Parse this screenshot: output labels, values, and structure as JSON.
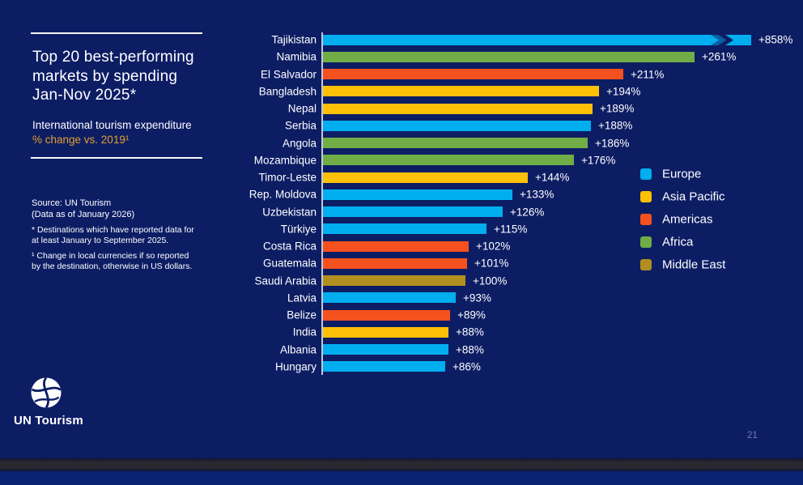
{
  "panel": {
    "title_lines": [
      "Top 20 best-performing",
      "markets by spending",
      "Jan-Nov 2025*"
    ],
    "subtitle": "International tourism expenditure",
    "subtitle_highlight": "% change vs. 2019¹",
    "highlight_color": "#E0A030",
    "source_lines": [
      "Source: UN Tourism",
      "(Data as of January 2026)"
    ],
    "footnote1_lines": [
      "* Destinations which have reported data for",
      "at least January to September 2025."
    ],
    "footnote2_lines": [
      "¹ Change in local currencies if so reported",
      "by the destination, otherwise in US dollars."
    ]
  },
  "logo": {
    "label": "UN Tourism"
  },
  "page_number": "21",
  "region_colors": {
    "Europe": "#00AEEF",
    "Asia Pacific": "#FFC008",
    "Americas": "#F4511E",
    "Africa": "#70AD47",
    "Middle East": "#B08F1E"
  },
  "legend": {
    "items": [
      {
        "label": "Europe"
      },
      {
        "label": "Asia Pacific"
      },
      {
        "label": "Americas"
      },
      {
        "label": "Africa"
      },
      {
        "label": "Middle East"
      }
    ]
  },
  "chart_data": {
    "type": "bar",
    "orientation": "horizontal",
    "title": "Top 20 best-performing markets by spending Jan-Nov 2025*",
    "value_unit": "% change vs. 2019",
    "grid": false,
    "legend_position": "right",
    "categories": [
      "Tajikistan",
      "Namibia",
      "El Salvador",
      "Bangladesh",
      "Nepal",
      "Serbia",
      "Angola",
      "Mozambique",
      "Timor-Leste",
      "Rep. Moldova",
      "Uzbekistan",
      "Türkiye",
      "Costa Rica",
      "Guatemala",
      "Saudi Arabia",
      "Latvia",
      "Belize",
      "India",
      "Albania",
      "Hungary"
    ],
    "values": [
      858,
      261,
      211,
      194,
      189,
      188,
      186,
      176,
      144,
      133,
      126,
      115,
      102,
      101,
      100,
      93,
      89,
      88,
      88,
      86
    ],
    "rows": [
      {
        "name": "Tajikistan",
        "value": 858,
        "label": "+858%",
        "region": "Europe",
        "axis_break": true
      },
      {
        "name": "Namibia",
        "value": 261,
        "label": "+261%",
        "region": "Africa"
      },
      {
        "name": "El Salvador",
        "value": 211,
        "label": "+211%",
        "region": "Americas"
      },
      {
        "name": "Bangladesh",
        "value": 194,
        "label": "+194%",
        "region": "Asia Pacific"
      },
      {
        "name": "Nepal",
        "value": 189,
        "label": "+189%",
        "region": "Asia Pacific"
      },
      {
        "name": "Serbia",
        "value": 188,
        "label": "+188%",
        "region": "Europe"
      },
      {
        "name": "Angola",
        "value": 186,
        "label": "+186%",
        "region": "Africa"
      },
      {
        "name": "Mozambique",
        "value": 176,
        "label": "+176%",
        "region": "Africa"
      },
      {
        "name": "Timor-Leste",
        "value": 144,
        "label": "+144%",
        "region": "Asia Pacific"
      },
      {
        "name": "Rep. Moldova",
        "value": 133,
        "label": "+133%",
        "region": "Europe"
      },
      {
        "name": "Uzbekistan",
        "value": 126,
        "label": "+126%",
        "region": "Europe"
      },
      {
        "name": "Türkiye",
        "value": 115,
        "label": "+115%",
        "region": "Europe"
      },
      {
        "name": "Costa Rica",
        "value": 102,
        "label": "+102%",
        "region": "Americas"
      },
      {
        "name": "Guatemala",
        "value": 101,
        "label": "+101%",
        "region": "Americas"
      },
      {
        "name": "Saudi Arabia",
        "value": 100,
        "label": "+100%",
        "region": "Middle East"
      },
      {
        "name": "Latvia",
        "value": 93,
        "label": "+93%",
        "region": "Europe"
      },
      {
        "name": "Belize",
        "value": 89,
        "label": "+89%",
        "region": "Americas"
      },
      {
        "name": "India",
        "value": 88,
        "label": "+88%",
        "region": "Asia Pacific"
      },
      {
        "name": "Albania",
        "value": 88,
        "label": "+88%",
        "region": "Europe"
      },
      {
        "name": "Hungary",
        "value": 86,
        "label": "+86%",
        "region": "Europe"
      }
    ]
  }
}
